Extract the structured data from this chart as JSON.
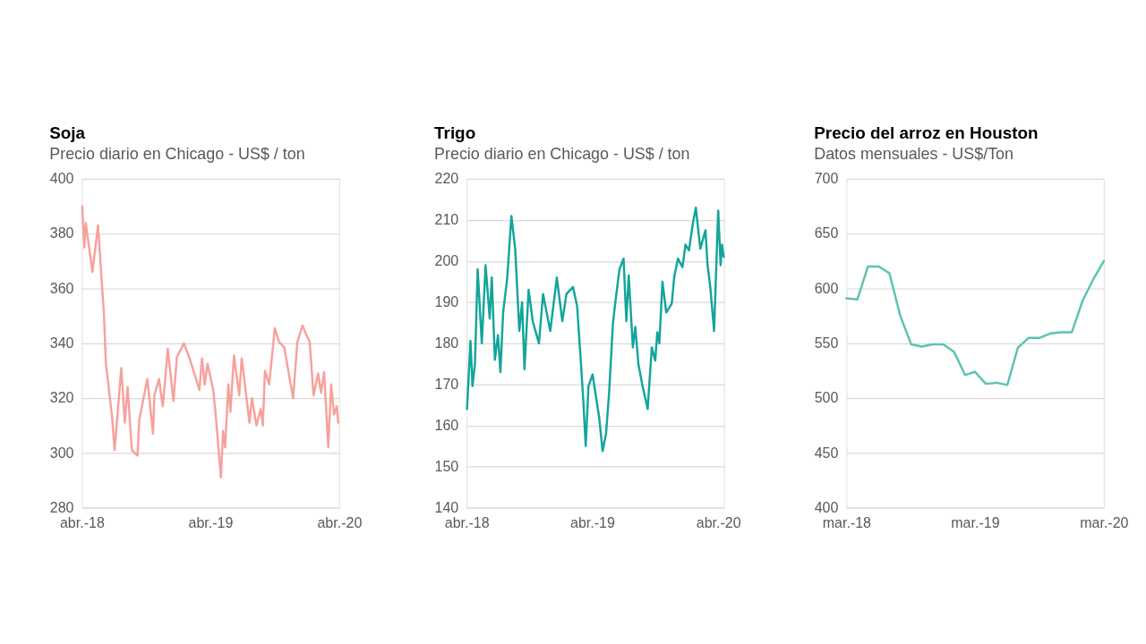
{
  "chart_data": [
    {
      "type": "line",
      "title": "Soja",
      "subtitle": "Precio diario en Chicago - US$ / ton",
      "x": [
        "2018-04-02",
        "2018-04-08",
        "2018-04-12",
        "2018-05-01",
        "2018-05-17",
        "2018-06-03",
        "2018-06-08",
        "2018-06-26",
        "2018-07-03",
        "2018-07-22",
        "2018-08-01",
        "2018-08-09",
        "2018-08-21",
        "2018-09-06",
        "2018-09-11",
        "2018-10-04",
        "2018-10-20",
        "2018-10-24",
        "2018-11-06",
        "2018-11-17",
        "2018-12-01",
        "2018-12-17",
        "2018-12-27",
        "2019-01-16",
        "2019-02-01",
        "2019-03-01",
        "2019-03-08",
        "2019-03-16",
        "2019-03-24",
        "2019-04-09",
        "2019-04-16",
        "2019-05-01",
        "2019-05-07",
        "2019-05-13",
        "2019-05-22",
        "2019-05-28",
        "2019-06-07",
        "2019-06-22",
        "2019-06-29",
        "2019-07-09",
        "2019-07-21",
        "2019-07-28",
        "2019-08-10",
        "2019-08-22",
        "2019-08-28",
        "2019-09-03",
        "2019-09-15",
        "2019-10-01",
        "2019-10-13",
        "2019-10-28",
        "2019-11-09",
        "2019-11-22",
        "2019-12-04",
        "2019-12-19",
        "2019-12-28",
        "2020-01-08",
        "2020-01-19",
        "2020-02-01",
        "2020-02-09",
        "2020-02-18",
        "2020-03-01",
        "2020-03-09",
        "2020-03-17",
        "2020-03-25",
        "2020-03-29"
      ],
      "series": [
        {
          "color": "#f7a19c",
          "values": [
            390,
            375,
            384,
            366,
            383,
            350,
            333,
            313,
            301,
            331,
            311,
            324,
            301,
            299,
            312,
            327,
            307,
            321,
            327,
            317,
            338,
            319,
            335,
            340,
            334.5,
            323,
            334.5,
            325,
            332.5,
            323,
            314,
            291,
            308,
            302,
            325,
            315,
            335.5,
            321,
            334.5,
            324,
            311,
            320,
            310,
            316,
            310,
            330,
            325,
            345.5,
            340.5,
            338.5,
            329.5,
            320,
            340.5,
            346.5,
            343.5,
            340.5,
            321,
            329,
            322,
            329.5,
            302,
            325,
            314,
            317,
            311
          ]
        }
      ],
      "xlim": [
        "2018-04-01",
        "2020-04-01"
      ],
      "xticks": [
        {
          "value": "2018-04-01",
          "label": "abr.-18"
        },
        {
          "value": "2019-04-01",
          "label": "abr.-19"
        },
        {
          "value": "2020-04-01",
          "label": "abr.-20"
        }
      ],
      "ylim": [
        280,
        400
      ],
      "yticks": [
        280,
        300,
        320,
        340,
        360,
        380,
        400
      ],
      "grid": "y"
    },
    {
      "type": "line",
      "title": "Trigo",
      "subtitle": "Precio diario en Chicago - US$ / ton",
      "x": [
        "2018-04-02",
        "2018-04-12",
        "2018-04-18",
        "2018-04-25",
        "2018-05-03",
        "2018-05-15",
        "2018-05-26",
        "2018-06-07",
        "2018-06-13",
        "2018-06-22",
        "2018-07-01",
        "2018-07-08",
        "2018-07-16",
        "2018-07-28",
        "2018-08-09",
        "2018-08-20",
        "2018-09-01",
        "2018-09-09",
        "2018-09-16",
        "2018-09-28",
        "2018-10-10",
        "2018-10-28",
        "2018-11-09",
        "2018-11-30",
        "2018-12-19",
        "2019-01-04",
        "2019-01-16",
        "2019-02-04",
        "2019-02-16",
        "2019-02-26",
        "2019-03-06",
        "2019-03-13",
        "2019-03-21",
        "2019-04-02",
        "2019-04-10",
        "2019-04-21",
        "2019-05-01",
        "2019-05-11",
        "2019-05-20",
        "2019-05-31",
        "2019-06-07",
        "2019-06-19",
        "2019-07-01",
        "2019-07-09",
        "2019-07-16",
        "2019-07-28",
        "2019-08-04",
        "2019-08-13",
        "2019-08-25",
        "2019-09-09",
        "2019-09-21",
        "2019-10-01",
        "2019-10-07",
        "2019-10-13",
        "2019-10-22",
        "2019-11-02",
        "2019-11-18",
        "2019-11-25",
        "2019-12-06",
        "2019-12-19",
        "2019-12-28",
        "2020-01-07",
        "2020-01-19",
        "2020-01-27",
        "2020-02-09",
        "2020-02-24",
        "2020-03-01",
        "2020-03-09",
        "2020-03-20",
        "2020-04-01",
        "2020-04-08",
        "2020-04-12",
        "2020-04-17"
      ],
      "series": [
        {
          "color": "#13a59b",
          "values": [
            164,
            180.6,
            169.6,
            175,
            198,
            180,
            199,
            186,
            196,
            176,
            182,
            173,
            187.5,
            196,
            211,
            203,
            183,
            190,
            173.7,
            193,
            185.4,
            180,
            192,
            183,
            196,
            185.4,
            192,
            193.7,
            189,
            176.5,
            166,
            155,
            169.6,
            172.4,
            168,
            162,
            153.8,
            158,
            168,
            184.7,
            190,
            198,
            200.6,
            185.4,
            196.5,
            179,
            184,
            175,
            169.6,
            164,
            179,
            175.8,
            182.7,
            180,
            195,
            187.5,
            189.6,
            196,
            200.6,
            198.5,
            204,
            202.6,
            209.5,
            213,
            203,
            207.5,
            199,
            193.7,
            183,
            212.3,
            199,
            204,
            201
          ]
        }
      ],
      "xlim": [
        "2018-04-01",
        "2020-04-18"
      ],
      "xticks": [
        {
          "value": "2018-04-01",
          "label": "abr.-18"
        },
        {
          "value": "2019-04-01",
          "label": "abr.-19"
        },
        {
          "value": "2020-04-01",
          "label": "abr.-20"
        }
      ],
      "ylim": [
        140,
        220
      ],
      "yticks": [
        140,
        150,
        160,
        170,
        180,
        190,
        200,
        210,
        220
      ],
      "grid": "y"
    },
    {
      "type": "line",
      "title": "Precio del arroz en Houston",
      "subtitle": "Datos mensuales - US$/Ton",
      "x": [
        "2018-03",
        "2018-04",
        "2018-05",
        "2018-06",
        "2018-07",
        "2018-08",
        "2018-09",
        "2018-10",
        "2018-11",
        "2018-12",
        "2019-01",
        "2019-02",
        "2019-03",
        "2019-04",
        "2019-05",
        "2019-06",
        "2019-07",
        "2019-08",
        "2019-09",
        "2019-10",
        "2019-11",
        "2019-12",
        "2020-01",
        "2020-02",
        "2020-03"
      ],
      "series": [
        {
          "color": "#5bc3b1",
          "values": [
            591,
            590,
            620,
            620,
            614,
            575,
            549,
            547,
            549,
            549,
            542,
            521,
            524,
            513,
            514,
            512,
            546,
            555,
            555,
            559,
            560,
            560,
            589,
            609,
            625
          ]
        }
      ],
      "xlim": [
        "2018-03-01",
        "2020-03-01"
      ],
      "xticks": [
        {
          "value": "2018-03-01",
          "label": "mar.-18"
        },
        {
          "value": "2019-03-01",
          "label": "mar.-19"
        },
        {
          "value": "2020-03-01",
          "label": "mar.-20"
        }
      ],
      "ylim": [
        400,
        700
      ],
      "yticks": [
        400,
        450,
        500,
        550,
        600,
        650,
        700
      ],
      "grid": "y"
    }
  ]
}
